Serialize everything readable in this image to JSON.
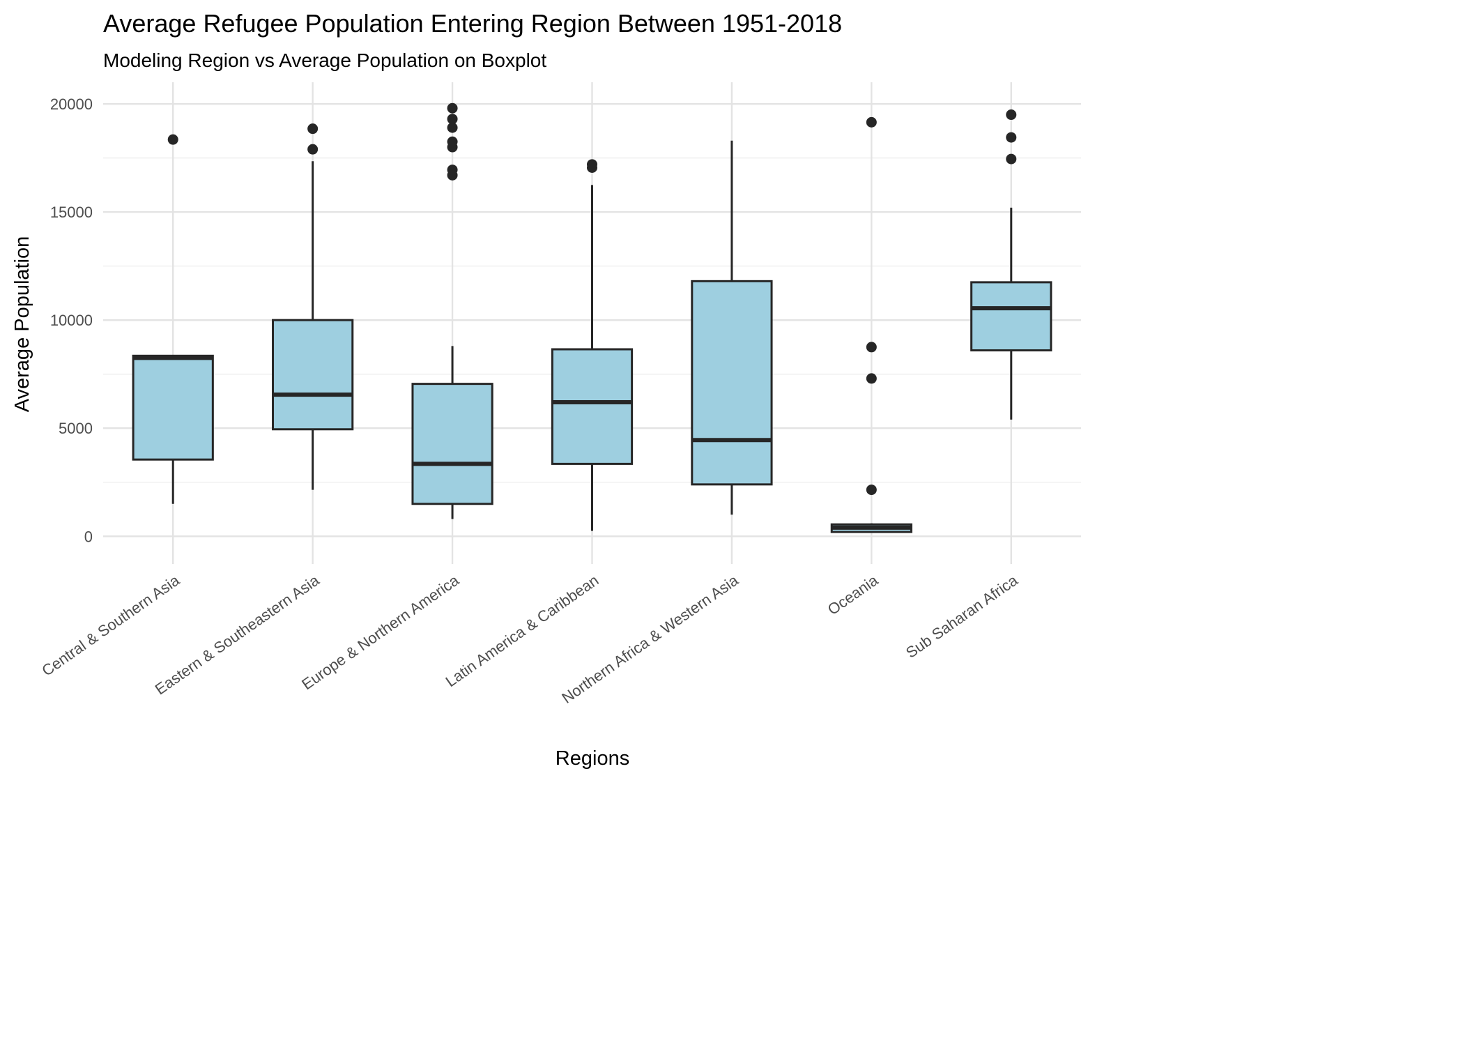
{
  "chart_data": {
    "type": "boxplot",
    "title": "Average Refugee Population Entering Region Between 1951-2018",
    "subtitle": "Modeling Region vs Average Population on Boxplot",
    "xlabel": "Regions",
    "ylabel": "Average Population",
    "ylim": [
      -700,
      21000
    ],
    "yticks": [
      0,
      5000,
      10000,
      15000,
      20000
    ],
    "ytick_labels": [
      "0",
      "5000",
      "10000",
      "15000",
      "20000"
    ],
    "y_minor_ticks": [
      2500,
      7500,
      12500,
      17500
    ],
    "grid": true,
    "box_color": "#9ecfe0",
    "line_color": "#262626",
    "categories": [
      "Central & Southern Asia",
      "Eastern & Southeastern Asia",
      "Europe & Northern America",
      "Latin America & Caribbean",
      "Northern Africa & Western Asia",
      "Oceania",
      "Sub Saharan Africa"
    ],
    "boxes": [
      {
        "whisker_low": 1500,
        "q1": 3550,
        "median": 8250,
        "q3": 8350,
        "whisker_high": 8350,
        "outliers": [
          18350
        ]
      },
      {
        "whisker_low": 2150,
        "q1": 4950,
        "median": 6550,
        "q3": 10000,
        "whisker_high": 17350,
        "outliers": [
          17900,
          18850
        ]
      },
      {
        "whisker_low": 800,
        "q1": 1500,
        "median": 3350,
        "q3": 7050,
        "whisker_high": 8800,
        "outliers": [
          16700,
          16950,
          18000,
          18250,
          18900,
          19300,
          19800
        ]
      },
      {
        "whisker_low": 250,
        "q1": 3350,
        "median": 6200,
        "q3": 8650,
        "whisker_high": 16250,
        "outliers": [
          17050,
          17200
        ]
      },
      {
        "whisker_low": 1000,
        "q1": 2400,
        "median": 4450,
        "q3": 11800,
        "whisker_high": 18300,
        "outliers": []
      },
      {
        "whisker_low": 200,
        "q1": 200,
        "median": 400,
        "q3": 550,
        "whisker_high": 600,
        "outliers": [
          2150,
          7300,
          8750,
          19150
        ]
      },
      {
        "whisker_low": 5400,
        "q1": 8600,
        "median": 10550,
        "q3": 11750,
        "whisker_high": 15200,
        "outliers": [
          17450,
          18450,
          19500
        ]
      }
    ]
  }
}
